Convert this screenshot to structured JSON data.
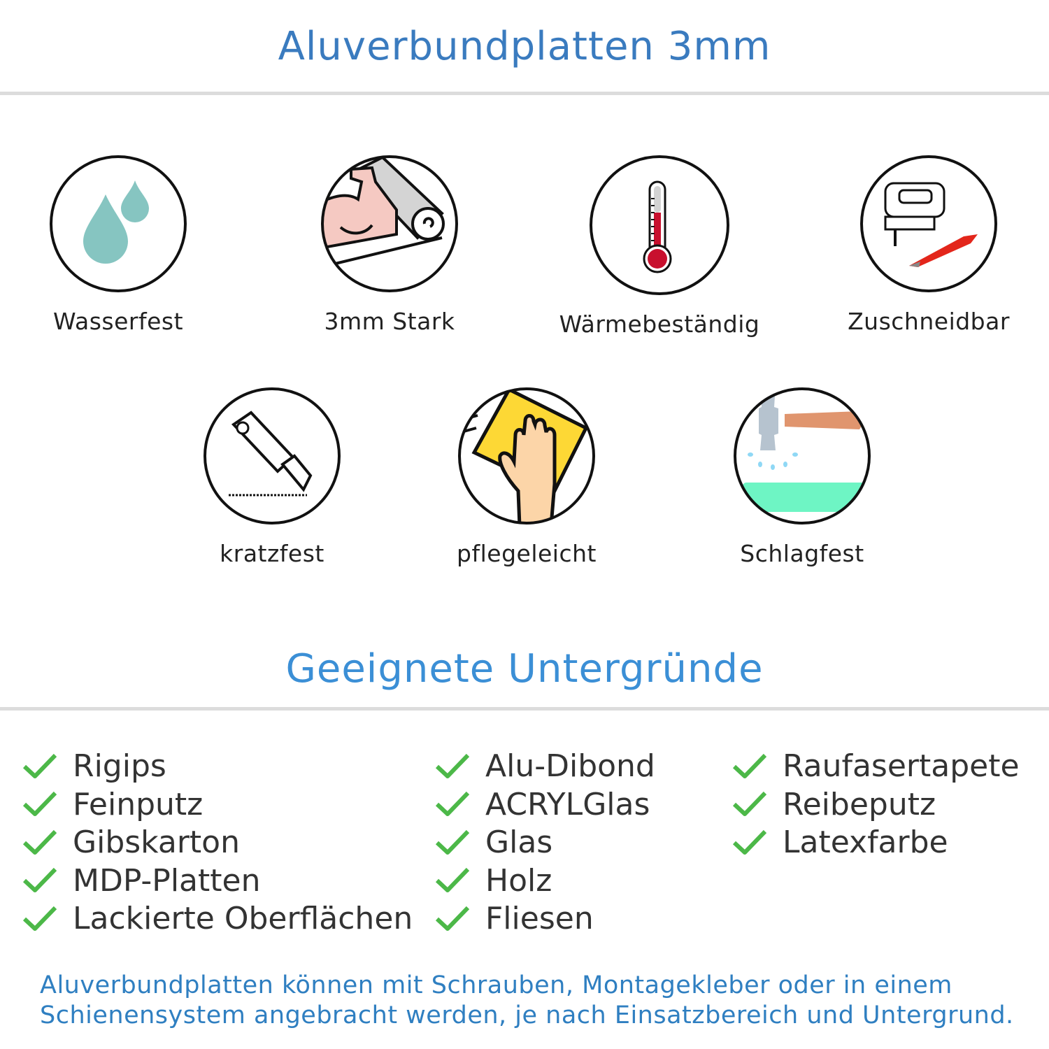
{
  "header": {
    "title": "Aluverbundplatten 3mm"
  },
  "features": [
    {
      "label": "Wasserfest",
      "icon": "water-drops-icon"
    },
    {
      "label": "3mm Stark",
      "icon": "strong-arm-icon"
    },
    {
      "label": "Wärmebeständig",
      "icon": "thermometer-icon"
    },
    {
      "label": "Zuschneidbar",
      "icon": "jigsaw-icon"
    },
    {
      "label": "kratzfest",
      "icon": "cutter-knife-icon"
    },
    {
      "label": "pflegeleicht",
      "icon": "cleaning-hand-icon"
    },
    {
      "label": "Schlagfest",
      "icon": "hammer-icon"
    }
  ],
  "surfaces": {
    "title": "Geeignete Untergründe",
    "columns": [
      [
        "Rigips",
        "Feinputz",
        "Gibskarton",
        "MDP-Platten",
        "Lackierte Oberflächen"
      ],
      [
        "Alu-Dibond",
        "ACRYLGlas",
        "Glas",
        "Holz",
        "Fliesen"
      ],
      [
        "Raufasertapete",
        "Reibeputz",
        "Latexfarbe"
      ]
    ],
    "check_color": "#4cb848"
  },
  "footer": {
    "line1": "Aluverbundplatten können mit Schrauben, Montagekleber oder in einem",
    "line2": "Schienensystem angebracht werden, je nach Einsatzbereich und Untergrund."
  },
  "colors": {
    "title": "#3a7bbf",
    "subtitle": "#3b8fd6",
    "footer": "#2f7fc1"
  }
}
